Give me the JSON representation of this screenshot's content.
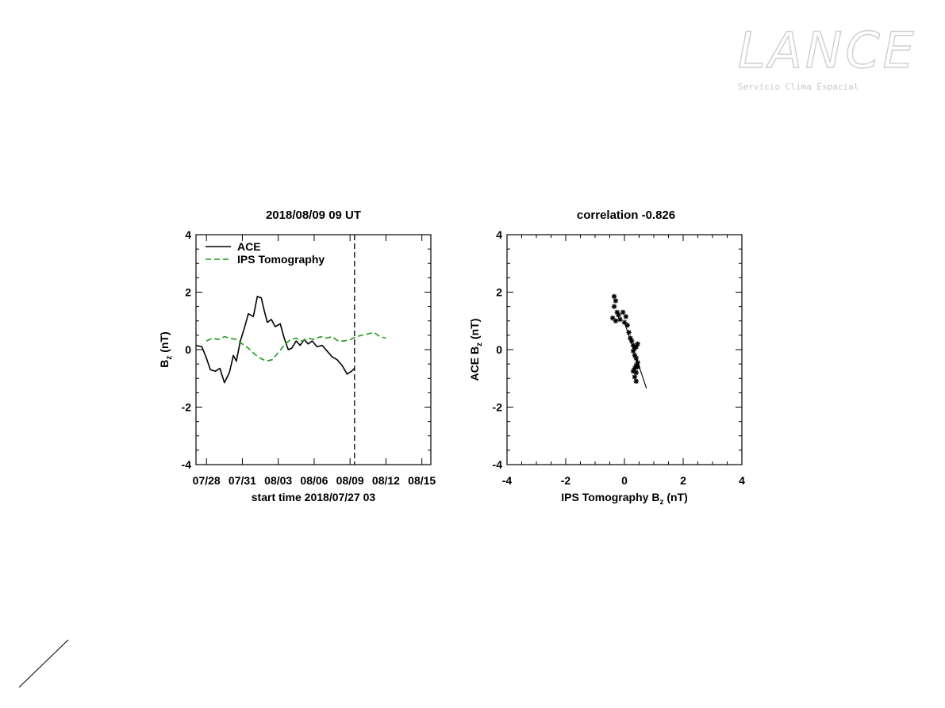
{
  "logo": {
    "text": "LANCE",
    "subtitle": "Servicio Clima Espacial"
  },
  "chart_data": [
    {
      "type": "line",
      "title": "2018/08/09 09 UT",
      "xlabel": "start time 2018/07/27 03",
      "ylabel_main": "B",
      "ylabel_sub": "z",
      "ylabel_unit": " (nT)",
      "ylim": [
        -4,
        4
      ],
      "yticks": [
        "-4",
        "-2",
        "0",
        "2",
        "4"
      ],
      "xlim": [
        "2018-07-27 03",
        "2018-08-15 18"
      ],
      "xticks": [
        {
          "x": "2018-07-28",
          "label": "07/28"
        },
        {
          "x": "2018-07-31",
          "label": "07/31"
        },
        {
          "x": "2018-08-03",
          "label": "08/03"
        },
        {
          "x": "2018-08-06",
          "label": "08/06"
        },
        {
          "x": "2018-08-09",
          "label": "08/09"
        },
        {
          "x": "2018-08-12",
          "label": "08/12"
        },
        {
          "x": "2018-08-15",
          "label": "08/15"
        }
      ],
      "current_time_marker": "2018-08-09 09",
      "legend_position": "top-left",
      "series": [
        {
          "name": "ACE",
          "color": "#000000",
          "style": "solid",
          "points": [
            [
              "2018-07-27 03",
              0.15
            ],
            [
              "2018-07-27 15",
              0.1
            ],
            [
              "2018-07-28 00",
              -0.3
            ],
            [
              "2018-07-28 08",
              -0.7
            ],
            [
              "2018-07-28 18",
              -0.75
            ],
            [
              "2018-07-29 03",
              -0.65
            ],
            [
              "2018-07-29 12",
              -1.15
            ],
            [
              "2018-07-29 22",
              -0.8
            ],
            [
              "2018-07-30 06",
              -0.2
            ],
            [
              "2018-07-30 12",
              -0.4
            ],
            [
              "2018-07-30 20",
              0.3
            ],
            [
              "2018-07-31 04",
              0.75
            ],
            [
              "2018-07-31 12",
              1.25
            ],
            [
              "2018-07-31 22",
              1.15
            ],
            [
              "2018-08-01 06",
              1.85
            ],
            [
              "2018-08-01 14",
              1.8
            ],
            [
              "2018-08-01 20",
              1.35
            ],
            [
              "2018-08-02 02",
              0.95
            ],
            [
              "2018-08-02 10",
              1.05
            ],
            [
              "2018-08-02 18",
              0.8
            ],
            [
              "2018-08-03 04",
              0.9
            ],
            [
              "2018-08-03 12",
              0.4
            ],
            [
              "2018-08-03 20",
              0.0
            ],
            [
              "2018-08-04 03",
              0.05
            ],
            [
              "2018-08-04 12",
              0.3
            ],
            [
              "2018-08-04 20",
              0.15
            ],
            [
              "2018-08-05 04",
              0.35
            ],
            [
              "2018-08-05 12",
              0.2
            ],
            [
              "2018-08-05 20",
              0.3
            ],
            [
              "2018-08-06 06",
              0.1
            ],
            [
              "2018-08-06 16",
              0.15
            ],
            [
              "2018-08-07 02",
              -0.05
            ],
            [
              "2018-08-07 12",
              -0.25
            ],
            [
              "2018-08-07 22",
              -0.35
            ],
            [
              "2018-08-08 08",
              -0.55
            ],
            [
              "2018-08-08 18",
              -0.85
            ],
            [
              "2018-08-09 03",
              -0.75
            ],
            [
              "2018-08-09 09",
              -0.65
            ]
          ]
        },
        {
          "name": "IPS Tomography",
          "color": "#1a9a1a",
          "style": "dashed",
          "points": [
            [
              "2018-07-28 00",
              0.3
            ],
            [
              "2018-07-28 12",
              0.4
            ],
            [
              "2018-07-29 00",
              0.35
            ],
            [
              "2018-07-29 12",
              0.45
            ],
            [
              "2018-07-30 00",
              0.4
            ],
            [
              "2018-07-30 12",
              0.35
            ],
            [
              "2018-07-31 00",
              0.2
            ],
            [
              "2018-07-31 12",
              0.05
            ],
            [
              "2018-08-01 00",
              -0.15
            ],
            [
              "2018-08-01 12",
              -0.3
            ],
            [
              "2018-08-02 00",
              -0.4
            ],
            [
              "2018-08-02 12",
              -0.35
            ],
            [
              "2018-08-03 00",
              -0.1
            ],
            [
              "2018-08-03 12",
              0.15
            ],
            [
              "2018-08-04 00",
              0.35
            ],
            [
              "2018-08-04 12",
              0.4
            ],
            [
              "2018-08-05 00",
              0.3
            ],
            [
              "2018-08-05 12",
              0.4
            ],
            [
              "2018-08-06 00",
              0.35
            ],
            [
              "2018-08-06 12",
              0.45
            ],
            [
              "2018-08-07 00",
              0.4
            ],
            [
              "2018-08-07 12",
              0.45
            ],
            [
              "2018-08-08 00",
              0.3
            ],
            [
              "2018-08-08 12",
              0.3
            ],
            [
              "2018-08-09 00",
              0.35
            ],
            [
              "2018-08-09 12",
              0.45
            ],
            [
              "2018-08-10 00",
              0.5
            ],
            [
              "2018-08-10 12",
              0.55
            ],
            [
              "2018-08-11 00",
              0.6
            ],
            [
              "2018-08-11 12",
              0.45
            ],
            [
              "2018-08-12 00",
              0.4
            ]
          ]
        }
      ]
    },
    {
      "type": "scatter",
      "title": "correlation -0.826",
      "xlabel_main": "IPS Tomography B",
      "xlabel_sub": "z",
      "xlabel_unit": " (nT)",
      "ylabel_main": "ACE B",
      "ylabel_sub": "z",
      "ylabel_unit": " (nT)",
      "xlim": [
        -4,
        4
      ],
      "ylim": [
        -4,
        4
      ],
      "xticks": [
        "-4",
        "-2",
        "0",
        "2",
        "4"
      ],
      "yticks": [
        "-4",
        "-2",
        "0",
        "2",
        "4"
      ],
      "marker": "asterisk",
      "points": [
        [
          -0.35,
          1.85
        ],
        [
          -0.3,
          1.7
        ],
        [
          -0.35,
          1.5
        ],
        [
          -0.25,
          1.3
        ],
        [
          -0.4,
          1.1
        ],
        [
          -0.3,
          1.0
        ],
        [
          -0.2,
          1.2
        ],
        [
          -0.15,
          1.05
        ],
        [
          -0.05,
          1.3
        ],
        [
          0.05,
          1.15
        ],
        [
          0.0,
          0.95
        ],
        [
          0.1,
          0.85
        ],
        [
          0.15,
          0.6
        ],
        [
          0.2,
          0.4
        ],
        [
          0.25,
          0.3
        ],
        [
          0.3,
          0.15
        ],
        [
          0.35,
          0.05
        ],
        [
          0.4,
          0.1
        ],
        [
          0.45,
          0.2
        ],
        [
          0.3,
          -0.05
        ],
        [
          0.35,
          -0.2
        ],
        [
          0.4,
          -0.3
        ],
        [
          0.45,
          -0.45
        ],
        [
          0.4,
          -0.55
        ],
        [
          0.35,
          -0.65
        ],
        [
          0.4,
          -0.8
        ],
        [
          0.35,
          -0.95
        ],
        [
          0.4,
          -1.1
        ],
        [
          0.3,
          -0.75
        ],
        [
          0.45,
          -0.6
        ]
      ],
      "fit_line": {
        "from": [
          0.0,
          0.95
        ],
        "to": [
          0.75,
          -1.35
        ]
      }
    }
  ]
}
